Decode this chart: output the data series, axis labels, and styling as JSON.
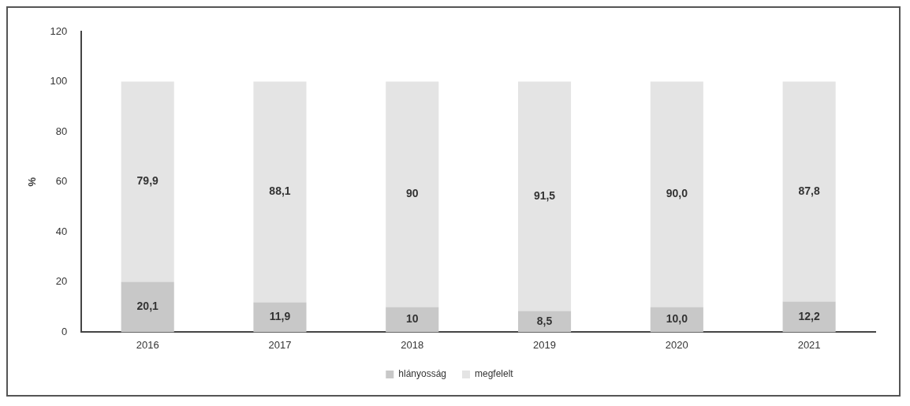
{
  "chart_data": {
    "type": "bar",
    "stacked": true,
    "categories": [
      "2016",
      "2017",
      "2018",
      "2019",
      "2020",
      "2021"
    ],
    "series": [
      {
        "name": "hlányosság",
        "color": "#c8c8c8",
        "values": [
          20.1,
          11.9,
          10,
          8.5,
          10.0,
          12.2
        ],
        "value_labels": [
          "20,1",
          "11,9",
          "10",
          "8,5",
          "10,0",
          "12,2"
        ]
      },
      {
        "name": "megfelelt",
        "color": "#e4e4e4",
        "values": [
          79.9,
          88.1,
          90,
          91.5,
          90.0,
          87.8
        ],
        "value_labels": [
          "79,9",
          "88,1",
          "90",
          "91,5",
          "90,0",
          "87,8"
        ]
      }
    ],
    "ylabel": "%",
    "ylim": [
      0,
      120
    ],
    "yticks": [
      0,
      20,
      40,
      60,
      80,
      100,
      120
    ],
    "grid": false,
    "legend": "bottom"
  }
}
